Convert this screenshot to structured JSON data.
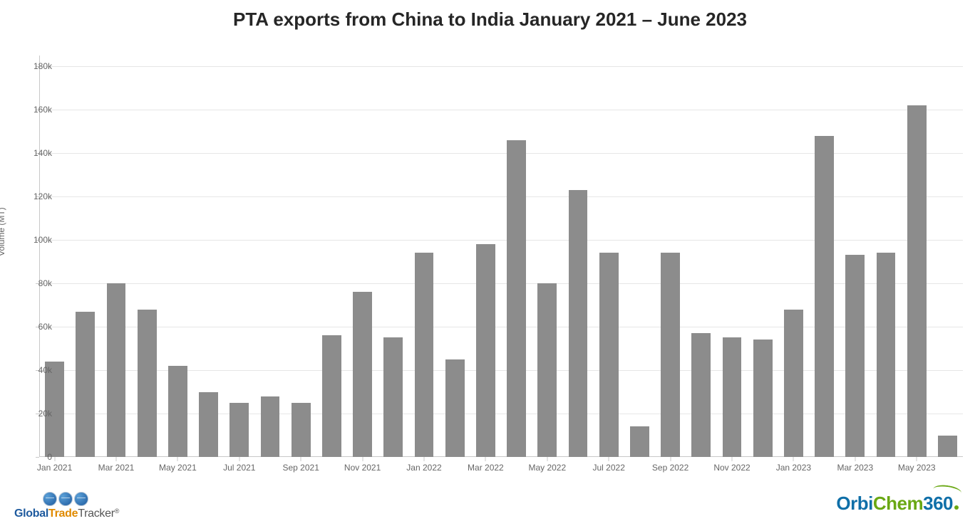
{
  "chart": {
    "type": "bar",
    "title": "PTA exports from China to India January 2021 – June 2023",
    "title_fontsize": 26,
    "title_color": "#262626",
    "yaxis_label": "Volume (MT)",
    "yaxis_label_fontsize": 12,
    "yaxis_label_color": "#666666",
    "background_color": "#ffffff",
    "grid_color": "#e6e6e6",
    "axis_color": "#c8c8c8",
    "tick_color": "#666666",
    "tick_fontsize": 12,
    "bar_color": "#8c8c8c",
    "bar_width_ratio": 0.62,
    "ylim": [
      0,
      185000
    ],
    "ytick_step": 20000,
    "yticks": [
      {
        "v": 0,
        "label": "0"
      },
      {
        "v": 20000,
        "label": "20k"
      },
      {
        "v": 40000,
        "label": "40k"
      },
      {
        "v": 60000,
        "label": "60k"
      },
      {
        "v": 80000,
        "label": "80k"
      },
      {
        "v": 100000,
        "label": "100k"
      },
      {
        "v": 120000,
        "label": "120k"
      },
      {
        "v": 140000,
        "label": "140k"
      },
      {
        "v": 160000,
        "label": "160k"
      },
      {
        "v": 180000,
        "label": "180k"
      }
    ],
    "data": [
      {
        "month": "Jan 2021",
        "value": 44000
      },
      {
        "month": "Feb 2021",
        "value": 67000
      },
      {
        "month": "Mar 2021",
        "value": 80000
      },
      {
        "month": "Apr 2021",
        "value": 68000
      },
      {
        "month": "May 2021",
        "value": 42000
      },
      {
        "month": "Jun 2021",
        "value": 30000
      },
      {
        "month": "Jul 2021",
        "value": 25000
      },
      {
        "month": "Aug 2021",
        "value": 28000
      },
      {
        "month": "Sep 2021",
        "value": 25000
      },
      {
        "month": "Oct 2021",
        "value": 56000
      },
      {
        "month": "Nov 2021",
        "value": 76000
      },
      {
        "month": "Dec 2021",
        "value": 55000
      },
      {
        "month": "Jan 2022",
        "value": 94000
      },
      {
        "month": "Feb 2022",
        "value": 45000
      },
      {
        "month": "Mar 2022",
        "value": 98000
      },
      {
        "month": "Apr 2022",
        "value": 146000
      },
      {
        "month": "May 2022",
        "value": 80000
      },
      {
        "month": "Jun 2022",
        "value": 123000
      },
      {
        "month": "Jul 2022",
        "value": 94000
      },
      {
        "month": "Aug 2022",
        "value": 14000
      },
      {
        "month": "Sep 2022",
        "value": 94000
      },
      {
        "month": "Oct 2022",
        "value": 57000
      },
      {
        "month": "Nov 2022",
        "value": 55000
      },
      {
        "month": "Dec 2022",
        "value": 54000
      },
      {
        "month": "Jan 2023",
        "value": 68000
      },
      {
        "month": "Feb 2023",
        "value": 148000
      },
      {
        "month": "Mar 2023",
        "value": 93000
      },
      {
        "month": "Apr 2023",
        "value": 94000
      },
      {
        "month": "May 2023",
        "value": 162000
      },
      {
        "month": "Jun 2023",
        "value": 10000
      }
    ],
    "xtick_labels": [
      "Jan 2021",
      "Mar 2021",
      "May 2021",
      "Jul 2021",
      "Sep 2021",
      "Nov 2021",
      "Jan 2022",
      "Mar 2022",
      "May 2022",
      "Jul 2022",
      "Sep 2022",
      "Nov 2022",
      "Jan 2023",
      "Mar 2023",
      "May 2023"
    ],
    "xtick_indices": [
      0,
      2,
      4,
      6,
      8,
      10,
      12,
      14,
      16,
      18,
      20,
      22,
      24,
      26,
      28
    ]
  },
  "footer": {
    "left_logo": {
      "line1_global": "Global",
      "line1_trade": "Trade",
      "line1_tracker": "Tracker",
      "mark": "®"
    },
    "right_logo": {
      "orbi": "Orbi",
      "chem": "Chem",
      "n360": "360"
    }
  }
}
